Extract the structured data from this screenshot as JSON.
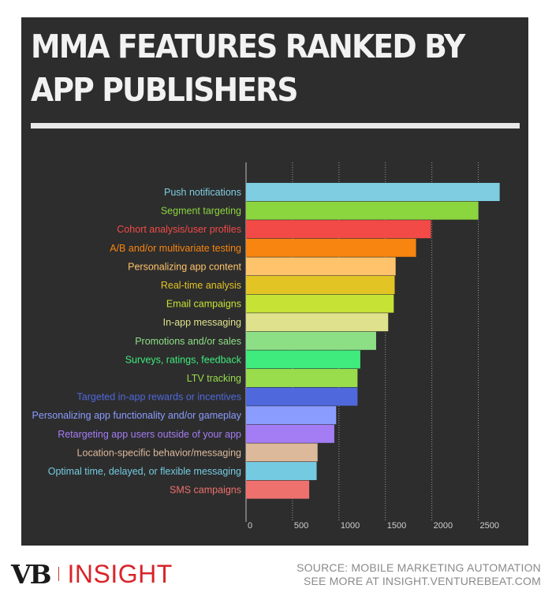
{
  "title": "MMA FEATURES RANKED BY APP PUBLISHERS",
  "chart_data": {
    "type": "bar",
    "orientation": "horizontal",
    "title": "MMA FEATURES RANKED BY APP PUBLISHERS",
    "categories": [
      "Push notifications",
      "Segment targeting",
      "Cohort analysis/user profiles",
      "A/B and/or multivariate testing",
      "Personalizing app content",
      "Real-time analysis",
      "Email campaigns",
      "In-app messaging",
      "Promotions and/or sales",
      "Surveys, ratings, feedback",
      "LTV tracking",
      "Targeted in-app rewards or incentives",
      "Personalizing app functionality and/or gameplay",
      "Retargeting app users outside of your app",
      "Location-specific behavior/messaging",
      "Optimal time, delayed, or flexible messaging",
      "SMS campaigns"
    ],
    "values": [
      2730,
      2500,
      1990,
      1830,
      1610,
      1600,
      1590,
      1530,
      1400,
      1230,
      1200,
      1200,
      970,
      950,
      770,
      760,
      680
    ],
    "colors": [
      "#7ecde0",
      "#8bd53f",
      "#f24a47",
      "#f7850f",
      "#ffc46b",
      "#e2c424",
      "#c6e335",
      "#dfe18c",
      "#8ddf85",
      "#3feb7c",
      "#99dc4c",
      "#4f69dd",
      "#8b9cff",
      "#a47cf4",
      "#ddb99b",
      "#74cbe1",
      "#ee716d"
    ],
    "xlim": [
      0,
      2750
    ],
    "xticks": [
      0,
      500,
      1000,
      1500,
      2000,
      2500
    ],
    "xlabel": "",
    "ylabel": "",
    "grid": true
  },
  "footer": {
    "logo_vb": "VB",
    "logo_insight": "INSIGHT",
    "source_line": "SOURCE: MOBILE MARKETING AUTOMATION",
    "more_line": "SEE MORE AT INSIGHT.VENTUREBEAT.COM"
  }
}
